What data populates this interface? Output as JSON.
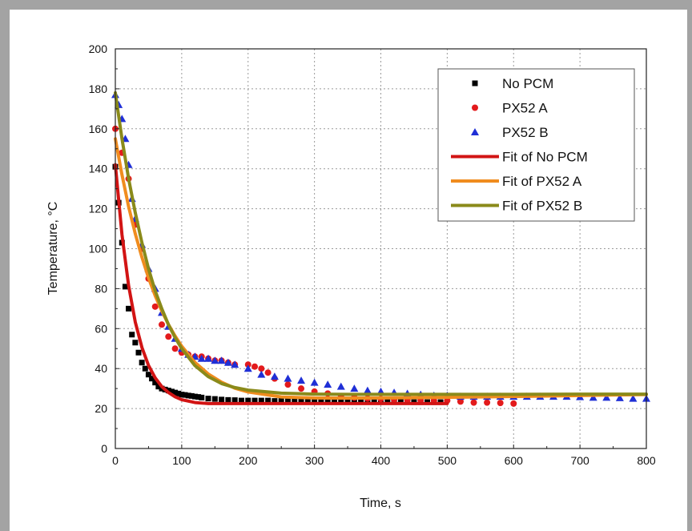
{
  "chart_data": {
    "type": "scatter",
    "xlabel": "Time, s",
    "ylabel": "Temperature, °C",
    "xlim": [
      0,
      800
    ],
    "ylim": [
      0,
      200
    ],
    "xticks": [
      0,
      100,
      200,
      300,
      400,
      500,
      600,
      700,
      800
    ],
    "yticks": [
      0,
      20,
      40,
      60,
      80,
      100,
      120,
      140,
      160,
      180,
      200
    ],
    "grid": true,
    "legend_position": "top-right",
    "series": [
      {
        "name": "No PCM",
        "kind": "scatter",
        "marker": "square",
        "color": "#000000",
        "x": [
          0,
          5,
          10,
          15,
          20,
          25,
          30,
          35,
          40,
          45,
          50,
          55,
          60,
          65,
          70,
          75,
          80,
          85,
          90,
          95,
          100,
          105,
          110,
          115,
          120,
          125,
          130,
          140,
          150,
          160,
          170,
          180,
          190,
          200,
          210,
          220,
          230,
          240,
          250,
          260,
          270,
          280,
          290,
          300,
          310,
          320,
          330,
          340,
          350,
          360,
          370,
          380,
          390,
          400,
          410,
          420,
          430,
          440,
          450,
          460,
          470,
          480,
          490
        ],
        "y": [
          141,
          123,
          103,
          81,
          70,
          57,
          53,
          48,
          43,
          40,
          37,
          35,
          33,
          31,
          30,
          29.5,
          29,
          28.5,
          28,
          27.5,
          27,
          26.8,
          26.5,
          26.3,
          26,
          25.8,
          25.5,
          25,
          24.8,
          24.5,
          24.3,
          24.2,
          24,
          24,
          24,
          24,
          24,
          23.8,
          23.8,
          23.8,
          23.7,
          23.7,
          23.6,
          23.6,
          23.6,
          23.5,
          23.5,
          23.5,
          23.5,
          23.4,
          23.4,
          23.4,
          23.4,
          23.3,
          23.3,
          23.3,
          23.3,
          23.3,
          23.2,
          23.2,
          23.2,
          23.2,
          23.2
        ]
      },
      {
        "name": "PX52 A",
        "kind": "scatter",
        "marker": "circle",
        "color": "#e31a1c",
        "x": [
          0,
          10,
          20,
          30,
          40,
          50,
          60,
          70,
          80,
          90,
          100,
          110,
          120,
          130,
          140,
          150,
          160,
          170,
          180,
          200,
          210,
          220,
          230,
          240,
          260,
          280,
          300,
          320,
          340,
          360,
          380,
          400,
          420,
          440,
          460,
          480,
          500,
          520,
          540,
          560,
          580,
          600
        ],
        "y": [
          160,
          148,
          135,
          112,
          100,
          85,
          71,
          62,
          56,
          50,
          48,
          47,
          46,
          46,
          45,
          44,
          44,
          43,
          42,
          42,
          41,
          40,
          38,
          35,
          32,
          30,
          28.5,
          27.5,
          26,
          25.5,
          25,
          24.8,
          24.5,
          24.3,
          24.2,
          24,
          24,
          23.5,
          23,
          23,
          22.8,
          22.5
        ]
      },
      {
        "name": "PX52 B",
        "kind": "scatter",
        "marker": "triangle",
        "color": "#1f2fd6",
        "x": [
          0,
          5,
          10,
          15,
          20,
          25,
          30,
          40,
          50,
          60,
          70,
          80,
          90,
          100,
          110,
          120,
          130,
          140,
          150,
          160,
          170,
          180,
          200,
          220,
          240,
          260,
          280,
          300,
          320,
          340,
          360,
          380,
          400,
          420,
          440,
          460,
          480,
          500,
          520,
          540,
          560,
          580,
          600,
          620,
          640,
          660,
          680,
          700,
          720,
          740,
          760,
          780,
          800
        ],
        "y": [
          177,
          172,
          165,
          155,
          142,
          125,
          115,
          102,
          90,
          80,
          68,
          61,
          55,
          50,
          47,
          46,
          45,
          45,
          44,
          44,
          43,
          42,
          40,
          37,
          36,
          35,
          34,
          33,
          32,
          31,
          30,
          29,
          28.5,
          28,
          27.5,
          27,
          26.5,
          26.5,
          26,
          26,
          26,
          26,
          26,
          26,
          26,
          26,
          26,
          25.8,
          25.5,
          25.5,
          25.3,
          25,
          25
        ]
      },
      {
        "name": "Fit of No PCM",
        "kind": "line",
        "color": "#d21414",
        "x": [
          0,
          10,
          20,
          30,
          40,
          50,
          60,
          70,
          80,
          90,
          100,
          120,
          140,
          160,
          180,
          200,
          250,
          300,
          400,
          500
        ],
        "y": [
          142,
          107,
          81.5,
          63.3,
          50.6,
          41.6,
          35.4,
          31.0,
          28.0,
          25.9,
          24.4,
          23.0,
          22.5,
          22.5,
          22.5,
          22.5,
          22.5,
          22.5,
          22.5,
          22.5
        ]
      },
      {
        "name": "Fit of PX52 A",
        "kind": "line",
        "color": "#f08c1e",
        "x": [
          0,
          10,
          20,
          30,
          40,
          50,
          60,
          70,
          80,
          90,
          100,
          120,
          140,
          160,
          180,
          200,
          250,
          300,
          350,
          400,
          500,
          600,
          700,
          800
        ],
        "y": [
          155,
          137,
          121,
          107.5,
          95.7,
          85.4,
          76.5,
          68.8,
          62.1,
          56.3,
          51.2,
          43.1,
          37.3,
          33.2,
          30.2,
          28.3,
          25.8,
          25.3,
          25.2,
          25.3,
          25.6,
          26,
          26.5,
          27
        ]
      },
      {
        "name": "Fit of PX52 B",
        "kind": "line",
        "color": "#8a8a1a",
        "x": [
          0,
          10,
          20,
          30,
          40,
          50,
          60,
          70,
          80,
          90,
          100,
          120,
          140,
          160,
          180,
          200,
          250,
          300,
          350,
          400,
          500,
          600,
          700,
          800
        ],
        "y": [
          178,
          155,
          135,
          118,
          103,
          90,
          79,
          70,
          62,
          55.5,
          50,
          41.5,
          36,
          32.5,
          30.5,
          29.2,
          27.7,
          27.2,
          27.1,
          27.1,
          27.1,
          27.1,
          27.2,
          27.2
        ]
      }
    ]
  }
}
